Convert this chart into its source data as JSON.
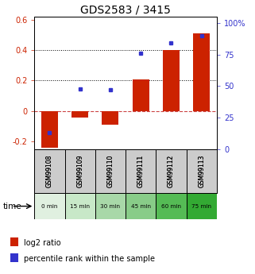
{
  "title": "GDS2583 / 3415",
  "samples": [
    "GSM99108",
    "GSM99109",
    "GSM99110",
    "GSM99111",
    "GSM99112",
    "GSM99113"
  ],
  "time_labels": [
    "0 min",
    "15 min",
    "30 min",
    "45 min",
    "60 min",
    "75 min"
  ],
  "log2_ratios": [
    -0.24,
    -0.04,
    -0.09,
    0.21,
    0.4,
    0.51
  ],
  "percentile_ranks": [
    13,
    48,
    47,
    76,
    84,
    90
  ],
  "ylim_left": [
    -0.25,
    0.62
  ],
  "ylim_right": [
    0,
    105
  ],
  "yticks_left": [
    -0.2,
    0.0,
    0.2,
    0.4,
    0.6
  ],
  "ytick_labels_left": [
    "-0.2",
    "0",
    "0.2",
    "0.4",
    "0.6"
  ],
  "yticks_right": [
    0,
    25,
    50,
    75,
    100
  ],
  "ytick_labels_right": [
    "0",
    "25",
    "50",
    "75",
    "100%"
  ],
  "dotted_lines": [
    0.2,
    0.4
  ],
  "bar_color": "#cc2200",
  "dot_color": "#3333cc",
  "title_fontsize": 10,
  "tick_fontsize": 7,
  "time_colors": [
    "#e0f0e0",
    "#c8e8c8",
    "#a8d8a8",
    "#88cc88",
    "#55bb55",
    "#33aa33"
  ],
  "gsm_bg_color": "#cccccc",
  "zero_dash_color": "#cc4444",
  "bg_color": "#ffffff"
}
